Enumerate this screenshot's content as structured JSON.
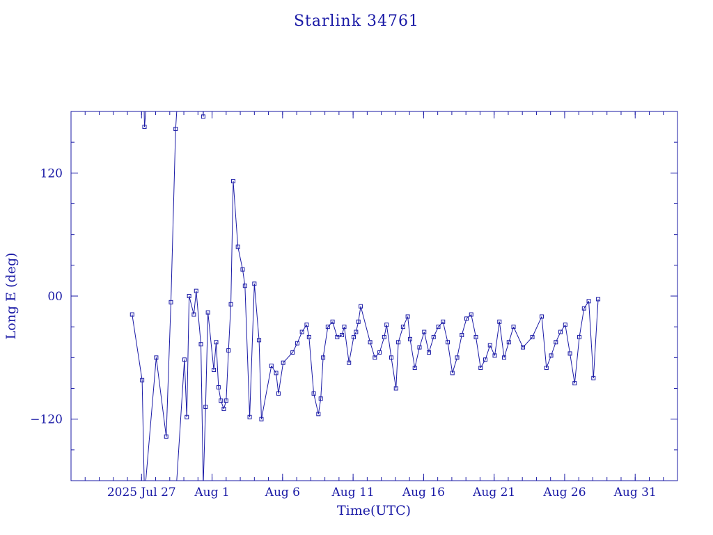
{
  "colors": {
    "ink": "#1a1aa6",
    "background": "#ffffff"
  },
  "chart_data": {
    "type": "line",
    "title": "Starlink 34761",
    "xlabel": "Time(UTC)",
    "ylabel": "Long E (deg)",
    "y_tick_labels": [
      "120",
      "00",
      "−120"
    ],
    "y_tick_values": [
      120,
      0,
      -120
    ],
    "x_tick_labels": [
      "2025 Jul 27",
      "Aug  1",
      "Aug  6",
      "Aug 11",
      "Aug 16",
      "Aug 21",
      "Aug 26",
      "Aug 31"
    ],
    "x_tick_dates": [
      "2025-07-27",
      "2025-08-01",
      "2025-08-06",
      "2025-08-11",
      "2025-08-16",
      "2025-08-21",
      "2025-08-26",
      "2025-08-31"
    ],
    "xlim": [
      "2025-07-22T00:00",
      "2025-09-03T00:00"
    ],
    "ylim": [
      -180,
      180
    ],
    "grid": false,
    "marker": "square",
    "series": [
      {
        "x": [
          "2025-07-26T08:00",
          "2025-07-27T01:00",
          "2025-07-27T05:00",
          "2025-07-28T01:00",
          "2025-07-28T18:00",
          "2025-07-29T02:00",
          "2025-07-29T10:00",
          "2025-07-30T01:00",
          "2025-07-30T05:00",
          "2025-07-30T09:00",
          "2025-07-30T17:00",
          "2025-07-30T21:00",
          "2025-07-31T05:00",
          "2025-07-31T09:00",
          "2025-07-31T13:00",
          "2025-07-31T17:00",
          "2025-08-01T03:00",
          "2025-08-01T07:00",
          "2025-08-01T11:00",
          "2025-08-01T15:00",
          "2025-08-01T20:00",
          "2025-08-02T00:00",
          "2025-08-02T04:00",
          "2025-08-02T08:00",
          "2025-08-02T12:00",
          "2025-08-02T20:00",
          "2025-08-03T04:00",
          "2025-08-03T08:00",
          "2025-08-03T16:00",
          "2025-08-04T00:00",
          "2025-08-04T08:00",
          "2025-08-04T12:00",
          "2025-08-05T05:00",
          "2025-08-05T13:00",
          "2025-08-05T17:00",
          "2025-08-06T01:00",
          "2025-08-06T17:00",
          "2025-08-07T01:00",
          "2025-08-07T09:00",
          "2025-08-07T17:00",
          "2025-08-07T21:00",
          "2025-08-08T05:00",
          "2025-08-08T13:00",
          "2025-08-08T17:00",
          "2025-08-08T21:00",
          "2025-08-09T05:00",
          "2025-08-09T13:00",
          "2025-08-09T21:00",
          "2025-08-10T05:00",
          "2025-08-10T09:00",
          "2025-08-10T17:00",
          "2025-08-11T01:00",
          "2025-08-11T05:00",
          "2025-08-11T09:00",
          "2025-08-11T13:00",
          "2025-08-12T05:00",
          "2025-08-12T13:00",
          "2025-08-12T21:00",
          "2025-08-13T05:00",
          "2025-08-13T09:00",
          "2025-08-13T17:00",
          "2025-08-14T01:00",
          "2025-08-14T05:00",
          "2025-08-14T13:00",
          "2025-08-14T21:00",
          "2025-08-15T01:00",
          "2025-08-15T09:00",
          "2025-08-15T17:00",
          "2025-08-16T01:00",
          "2025-08-16T09:00",
          "2025-08-16T17:00",
          "2025-08-17T01:00",
          "2025-08-17T09:00",
          "2025-08-17T17:00",
          "2025-08-18T01:00",
          "2025-08-18T09:00",
          "2025-08-18T17:00",
          "2025-08-19T01:00",
          "2025-08-19T09:00",
          "2025-08-19T17:00",
          "2025-08-20T01:00",
          "2025-08-20T09:00",
          "2025-08-20T17:00",
          "2025-08-21T01:00",
          "2025-08-21T09:00",
          "2025-08-21T17:00",
          "2025-08-22T01:00",
          "2025-08-22T09:00",
          "2025-08-23T01:00",
          "2025-08-23T17:00",
          "2025-08-24T09:00",
          "2025-08-24T17:00",
          "2025-08-25T01:00",
          "2025-08-25T09:00",
          "2025-08-25T17:00",
          "2025-08-26T01:00",
          "2025-08-26T09:00",
          "2025-08-26T17:00",
          "2025-08-27T01:00",
          "2025-08-27T09:00",
          "2025-08-27T17:00",
          "2025-08-28T01:00",
          "2025-08-28T09:00"
        ],
        "y": [
          -18,
          -82,
          165,
          -60,
          -137,
          -6,
          163,
          -62,
          -118,
          0,
          -18,
          5,
          -47,
          175,
          -108,
          -16,
          -72,
          -45,
          -89,
          -102,
          -110,
          -102,
          -53,
          -8,
          112,
          48,
          26,
          10,
          -118,
          12,
          -43,
          -120,
          -68,
          -75,
          -95,
          -65,
          -55,
          -46,
          -35,
          -28,
          -40,
          -95,
          -115,
          -100,
          -60,
          -30,
          -25,
          -40,
          -38,
          -30,
          -65,
          -40,
          -35,
          -25,
          -10,
          -45,
          -60,
          -55,
          -40,
          -28,
          -60,
          -90,
          -45,
          -30,
          -20,
          -42,
          -70,
          -50,
          -35,
          -55,
          -40,
          -30,
          -25,
          -45,
          -75,
          -60,
          -38,
          -22,
          -18,
          -40,
          -70,
          -62,
          -48,
          -58,
          -25,
          -60,
          -45,
          -30,
          -50,
          -40,
          -20,
          -70,
          -58,
          -45,
          -35,
          -28,
          -56,
          -85,
          -40,
          -12,
          -5,
          -80,
          -3
        ]
      }
    ]
  }
}
